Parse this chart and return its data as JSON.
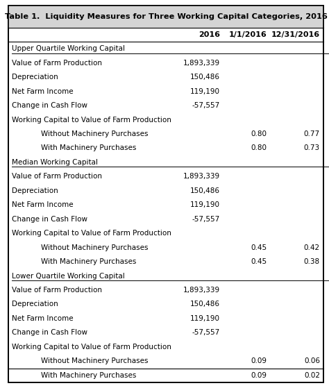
{
  "title": "Table 1.  Liquidity Measures for Three Working Capital Categories, 2016",
  "col_headers": [
    "2016",
    "1/1/2016",
    "12/31/2016"
  ],
  "rows": [
    {
      "label": "Upper Quartile Working Capital",
      "type": "section_header",
      "col1": "",
      "col2": "",
      "col3": ""
    },
    {
      "label": "Value of Farm Production",
      "type": "data",
      "col1": "1,893,339",
      "col2": "",
      "col3": ""
    },
    {
      "label": "Depreciation",
      "type": "data",
      "col1": "150,486",
      "col2": "",
      "col3": ""
    },
    {
      "label": "Net Farm Income",
      "type": "data",
      "col1": "119,190",
      "col2": "",
      "col3": ""
    },
    {
      "label": "Change in Cash Flow",
      "type": "data",
      "col1": "-57,557",
      "col2": "",
      "col3": ""
    },
    {
      "label": "Working Capital to Value of Farm Production",
      "type": "data",
      "col1": "",
      "col2": "",
      "col3": ""
    },
    {
      "label": "Without Machinery Purchases",
      "type": "indented",
      "col1": "",
      "col2": "0.80",
      "col3": "0.77"
    },
    {
      "label": "With Machinery Purchases",
      "type": "indented",
      "col1": "",
      "col2": "0.80",
      "col3": "0.73"
    },
    {
      "label": "Median Working Capital",
      "type": "section_header",
      "col1": "",
      "col2": "",
      "col3": ""
    },
    {
      "label": "Value of Farm Production",
      "type": "data",
      "col1": "1,893,339",
      "col2": "",
      "col3": ""
    },
    {
      "label": "Depreciation",
      "type": "data",
      "col1": "150,486",
      "col2": "",
      "col3": ""
    },
    {
      "label": "Net Farm Income",
      "type": "data",
      "col1": "119,190",
      "col2": "",
      "col3": ""
    },
    {
      "label": "Change in Cash Flow",
      "type": "data",
      "col1": "-57,557",
      "col2": "",
      "col3": ""
    },
    {
      "label": "Working Capital to Value of Farm Production",
      "type": "data",
      "col1": "",
      "col2": "",
      "col3": ""
    },
    {
      "label": "Without Machinery Purchases",
      "type": "indented",
      "col1": "",
      "col2": "0.45",
      "col3": "0.42"
    },
    {
      "label": "With Machinery Purchases",
      "type": "indented",
      "col1": "",
      "col2": "0.45",
      "col3": "0.38"
    },
    {
      "label": "Lower Quartile Working Capital",
      "type": "section_header",
      "col1": "",
      "col2": "",
      "col3": ""
    },
    {
      "label": "Value of Farm Production",
      "type": "data",
      "col1": "1,893,339",
      "col2": "",
      "col3": ""
    },
    {
      "label": "Depreciation",
      "type": "data",
      "col1": "150,486",
      "col2": "",
      "col3": ""
    },
    {
      "label": "Net Farm Income",
      "type": "data",
      "col1": "119,190",
      "col2": "",
      "col3": ""
    },
    {
      "label": "Change in Cash Flow",
      "type": "data",
      "col1": "-57,557",
      "col2": "",
      "col3": ""
    },
    {
      "label": "Working Capital to Value of Farm Production",
      "type": "data",
      "col1": "",
      "col2": "",
      "col3": ""
    },
    {
      "label": "Without Machinery Purchases",
      "type": "indented",
      "col1": "",
      "col2": "0.09",
      "col3": "0.06"
    },
    {
      "label": "With Machinery Purchases",
      "type": "indented",
      "col1": "",
      "col2": "0.09",
      "col3": "0.02"
    }
  ],
  "bg_color": "#ffffff",
  "title_bg": "#d4d4d4",
  "border_color": "#000000",
  "font_size": 7.5,
  "title_font_size": 8.2,
  "header_font_size": 8.0,
  "figwidth": 4.74,
  "figheight": 5.59,
  "dpi": 100
}
